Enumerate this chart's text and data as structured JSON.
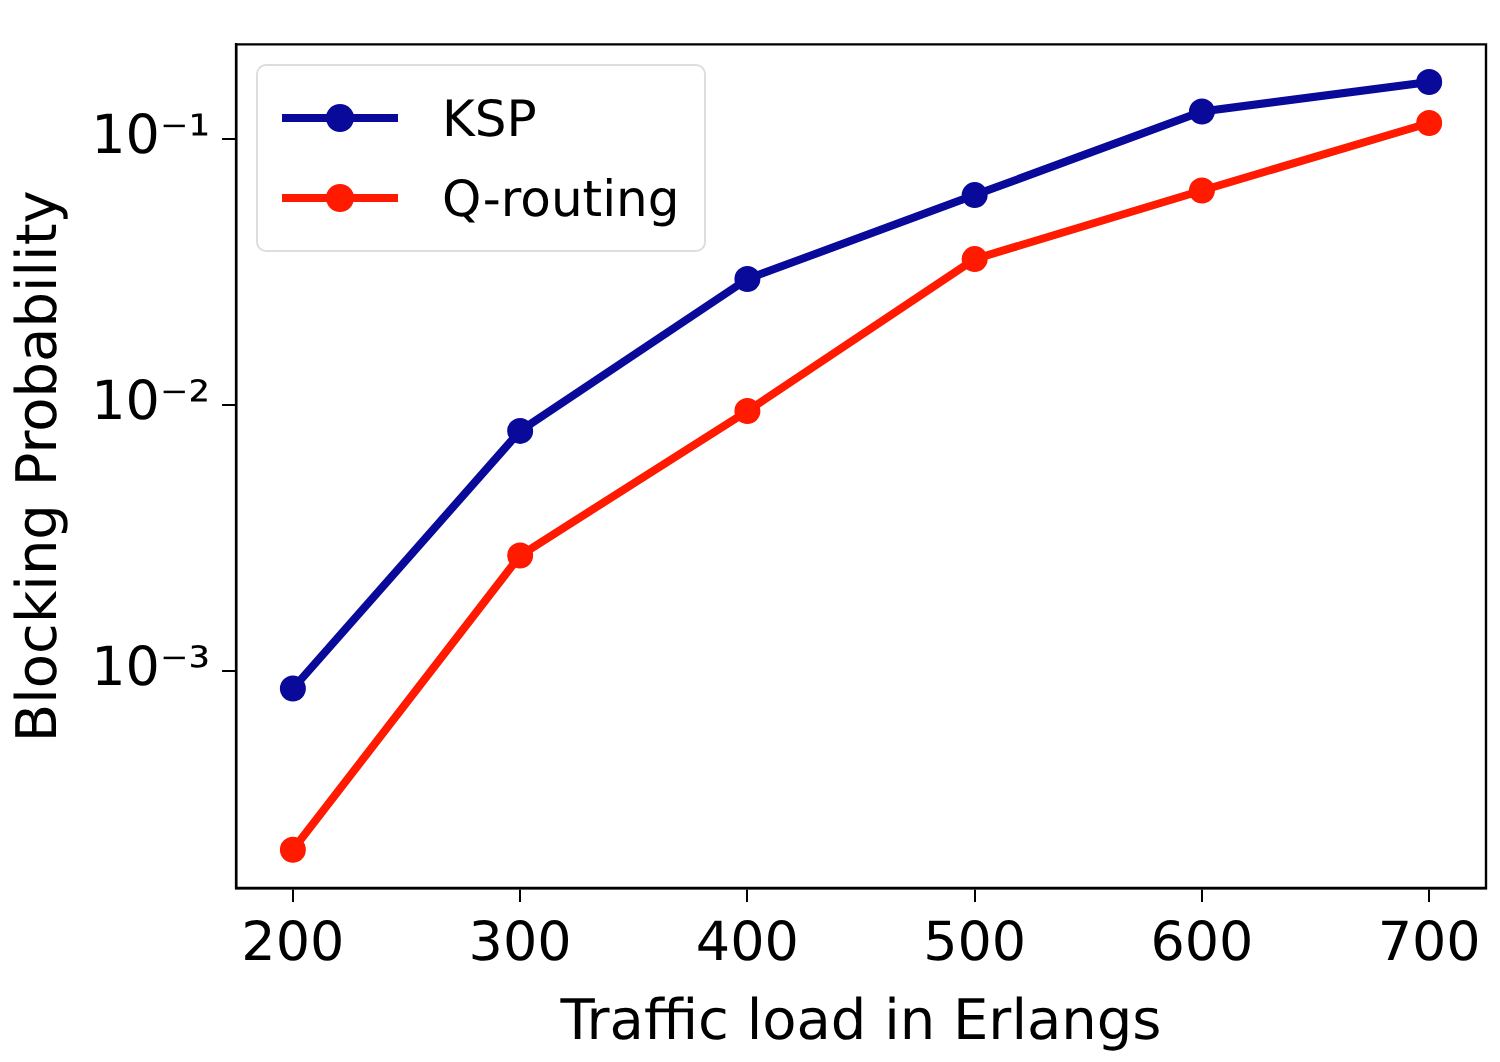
{
  "chart_data": {
    "type": "line",
    "xlabel": "Traffic load in Erlangs",
    "ylabel": "Blocking Probability",
    "x": [
      200,
      300,
      400,
      500,
      600,
      700
    ],
    "series": [
      {
        "name": "KSP",
        "color": "#0a0a9a",
        "values": [
          0.00086,
          0.008,
          0.0298,
          0.0616,
          0.127,
          0.164
        ]
      },
      {
        "name": "Q-routing",
        "color": "#ff1a00",
        "values": [
          0.000213,
          0.00272,
          0.0095,
          0.0354,
          0.0641,
          0.115
        ]
      }
    ],
    "xlim": [
      175,
      725
    ],
    "xticks": [
      200,
      300,
      400,
      500,
      600,
      700
    ],
    "ylim": [
      0.000153,
      0.227
    ],
    "yticks": [
      {
        "value": 0.001,
        "label": "10⁻³"
      },
      {
        "value": 0.01,
        "label": "10⁻²"
      },
      {
        "value": 0.1,
        "label": "10⁻¹"
      }
    ],
    "log": "y",
    "grid": false,
    "legend": "top left",
    "marker": "circle",
    "line_style": "solid"
  }
}
